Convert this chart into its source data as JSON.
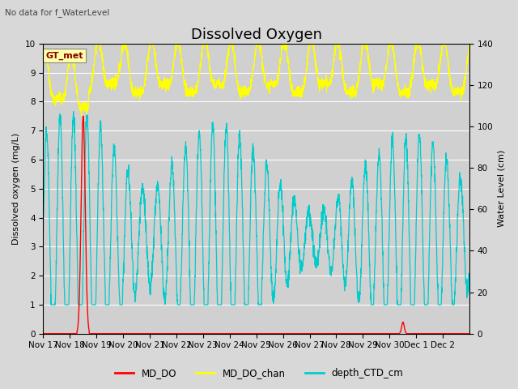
{
  "title": "Dissolved Oxygen",
  "top_left_text": "No data for f_WaterLevel",
  "annotation_text": "GT_met",
  "ylabel_left": "Dissolved oxygen (mg/L)",
  "ylabel_right": "Water Level (cm)",
  "ylim_left": [
    0.0,
    10.0
  ],
  "ylim_right": [
    0,
    140
  ],
  "yticks_left": [
    0.0,
    1.0,
    2.0,
    3.0,
    4.0,
    5.0,
    6.0,
    7.0,
    8.0,
    9.0,
    10.0
  ],
  "yticks_right": [
    0,
    20,
    40,
    60,
    80,
    100,
    120,
    140
  ],
  "xtick_labels": [
    "Nov 17",
    "Nov 18",
    "Nov 19",
    "Nov 20",
    "Nov 21",
    "Nov 22",
    "Nov 23",
    "Nov 24",
    "Nov 25",
    "Nov 26",
    "Nov 27",
    "Nov 28",
    "Nov 29",
    "Nov 30",
    "Dec 1",
    "Dec 2"
  ],
  "legend_labels": [
    "MD_DO",
    "MD_DO_chan",
    "depth_CTD_cm"
  ],
  "legend_colors": [
    "#ff0000",
    "#ffff00",
    "#00cccc"
  ],
  "line_colors": {
    "MD_DO": "#ff0000",
    "MD_DO_chan": "#ffff00",
    "depth_CTD_cm": "#00cccc"
  },
  "background_color": "#d8d8d8",
  "plot_bg_color": "#d0d0d0",
  "grid_color": "#ffffff",
  "title_fontsize": 13,
  "axis_label_fontsize": 8,
  "tick_fontsize": 7.5
}
